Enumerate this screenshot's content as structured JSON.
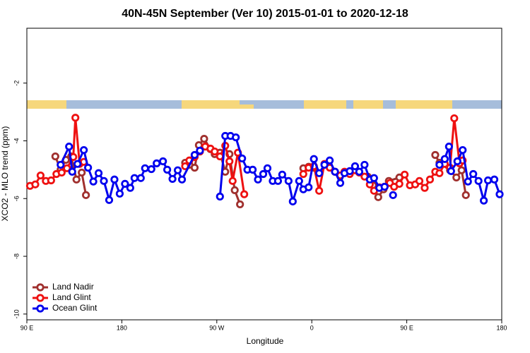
{
  "chart_data": {
    "type": "line",
    "title": "40N-45N September (Ver 10)   2015-01-01 to 2020-12-18",
    "x_label": "Longitude",
    "y_label": "XCO2 - MLO trend (ppm)",
    "xlim": [
      90,
      540
    ],
    "ylim": [
      -10.2,
      -0.1
    ],
    "xticks": [
      {
        "value": 90,
        "label": "90 E"
      },
      {
        "value": 180,
        "label": "180"
      },
      {
        "value": 270,
        "label": "90 W"
      },
      {
        "value": 360,
        "label": "0"
      },
      {
        "value": 450,
        "label": "90 E"
      },
      {
        "value": 540,
        "label": "180"
      }
    ],
    "yticks": [
      -10,
      -8,
      -6,
      -4,
      -2
    ],
    "legend": "bottom-left",
    "series": [
      {
        "name": "Land Nadir",
        "color": "#a0302e",
        "x": [
          117,
          122,
          127,
          132,
          137,
          142,
          146,
          null,
          240,
          244,
          249,
          253,
          258,
          264,
          268,
          273,
          278,
          282,
          287,
          292,
          null,
          352,
          357,
          362,
          null,
          413,
          418,
          423,
          428,
          433,
          443,
          null,
          477,
          481,
          491,
          497,
          502,
          506
        ],
        "values": [
          -4.54,
          -5.0,
          -4.66,
          -4.54,
          -5.34,
          -5.1,
          -5.88,
          null,
          -4.76,
          -4.83,
          -4.93,
          -4.15,
          -3.93,
          -4.29,
          -4.46,
          -4.41,
          -5.07,
          -4.46,
          -5.71,
          -6.2,
          null,
          -4.95,
          -4.9,
          -4.93,
          null,
          -5.24,
          -5.54,
          -5.95,
          -5.68,
          -5.39,
          -5.27,
          null,
          -4.49,
          -4.76,
          -5.02,
          -5.27,
          -5.02,
          -5.88
        ]
      },
      {
        "name": "Land Glint",
        "color": "#ee1111",
        "x": [
          93,
          98,
          103,
          108,
          113,
          118,
          123,
          128,
          134,
          136,
          140,
          144,
          null,
          240,
          244,
          249,
          254,
          259,
          264,
          268,
          273,
          278,
          282,
          285,
          290,
          296,
          null,
          352,
          357,
          362,
          367,
          372,
          377,
          382,
          387,
          391,
          396,
          401,
          405,
          410,
          415,
          419,
          424,
          429,
          434,
          438,
          443,
          448,
          453,
          458,
          462,
          467,
          472,
          477,
          481,
          486,
          491,
          495,
          500,
          503
        ],
        "values": [
          -5.56,
          -5.51,
          -5.2,
          -5.39,
          -5.37,
          -5.15,
          -5.1,
          -4.95,
          -4.56,
          -3.2,
          -4.8,
          -4.73,
          null,
          -4.88,
          -4.68,
          -4.56,
          -4.37,
          -4.2,
          -4.27,
          -4.37,
          -4.54,
          -4.17,
          -4.71,
          -5.39,
          -4.41,
          -5.85,
          null,
          -5.15,
          -4.93,
          -4.88,
          -5.73,
          -4.8,
          -4.93,
          -5.07,
          -5.2,
          -5.07,
          -5.15,
          -5.02,
          -5.1,
          -5.24,
          -5.51,
          -5.73,
          -5.61,
          -5.59,
          -5.46,
          -5.59,
          -5.49,
          -5.17,
          -5.54,
          -5.51,
          -5.39,
          -5.63,
          -5.34,
          -5.07,
          -5.12,
          -4.8,
          -4.93,
          -3.22,
          -4.78,
          -4.68
        ]
      },
      {
        "name": "Ocean Glint",
        "color": "#0000ee",
        "x": [
          122,
          130,
          133,
          138,
          144,
          148,
          153,
          158,
          163,
          168,
          173,
          178,
          183,
          188,
          192,
          198,
          202,
          208,
          213,
          219,
          223,
          228,
          233,
          237,
          249,
          254,
          null,
          273,
          278,
          283,
          288,
          294,
          299,
          304,
          309,
          314,
          318,
          323,
          328,
          332,
          338,
          342,
          348,
          352,
          357,
          362,
          367,
          372,
          377,
          382,
          387,
          391,
          396,
          401,
          405,
          410,
          415,
          419,
          424,
          429,
          null,
          437,
          null,
          481,
          486,
          490,
          492,
          498,
          503,
          508,
          513,
          518,
          523,
          527,
          533,
          538
        ],
        "values": [
          -4.83,
          -4.2,
          -5.07,
          -4.8,
          -4.32,
          -4.93,
          -5.41,
          -5.12,
          -5.39,
          -6.05,
          -5.34,
          -5.83,
          -5.49,
          -5.63,
          -5.29,
          -5.29,
          -4.95,
          -4.98,
          -4.78,
          -4.71,
          -5.0,
          -5.32,
          -5.02,
          -5.34,
          -4.49,
          -4.34,
          null,
          -5.93,
          -3.83,
          -3.83,
          -3.88,
          -4.61,
          -5.0,
          -5.0,
          -5.34,
          -5.15,
          -4.95,
          -5.39,
          -5.39,
          -5.17,
          -5.39,
          -6.1,
          -5.39,
          -5.68,
          -5.61,
          -4.63,
          -5.12,
          -4.83,
          -4.68,
          -5.07,
          -5.46,
          -5.12,
          -5.05,
          -4.88,
          -5.07,
          -4.83,
          -5.34,
          -5.29,
          -5.63,
          -5.59,
          null,
          -5.88,
          null,
          -4.83,
          -4.63,
          -4.2,
          -5.05,
          -4.71,
          -4.32,
          -5.41,
          -5.15,
          -5.39,
          -6.07,
          -5.37,
          -5.34,
          -5.85
        ]
      }
    ]
  }
}
